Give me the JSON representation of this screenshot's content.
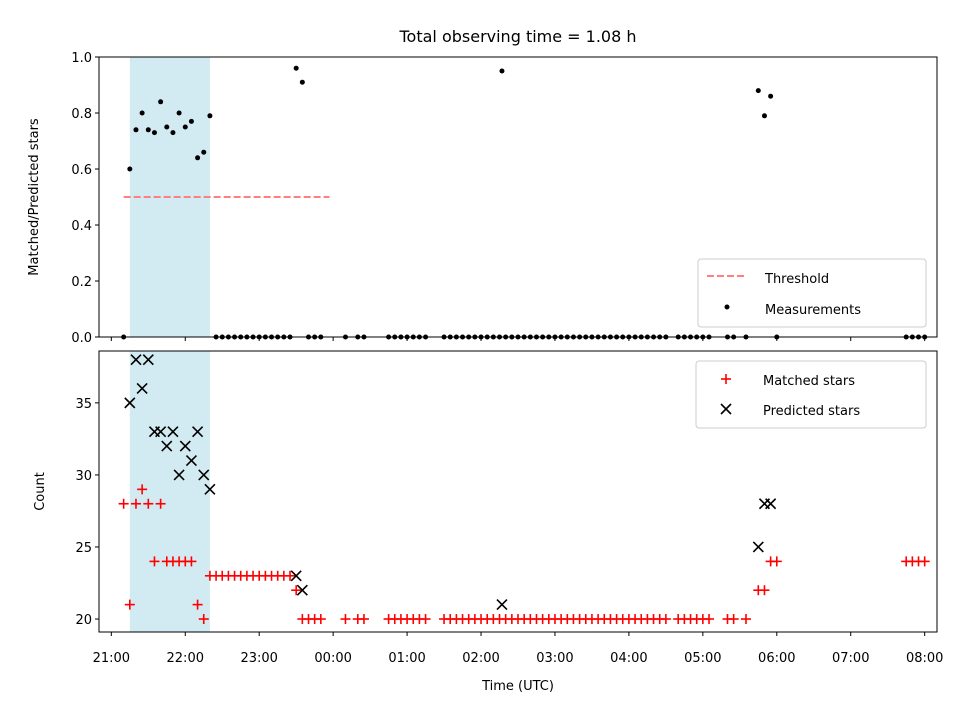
{
  "title": "Total observing time = 1.08 h",
  "colors": {
    "threshold": "#ff7f7f",
    "highlight": "#add8e6",
    "matched": "#ff0000",
    "predicted": "#000000",
    "measurement": "#000000"
  },
  "chart_data": [
    {
      "type": "scatter",
      "panel": "top",
      "ylabel": "Matched/Predicted stars",
      "xlabel": "",
      "ylim": [
        0,
        1.0
      ],
      "xlim": [
        "21:00",
        "08:00"
      ],
      "x_is_time": true,
      "y_ticks": [
        "0.0",
        "0.2",
        "0.4",
        "0.6",
        "0.8",
        "1.0"
      ],
      "highlight_span": [
        "21:15",
        "22:20"
      ],
      "legend_position": "lower right",
      "threshold": {
        "name": "Threshold",
        "style": "dashed",
        "x": [
          "21:10",
          "23:57"
        ],
        "y": 0.5
      },
      "series": [
        {
          "name": "Measurements",
          "marker": "dot",
          "points": [
            [
              "21:10",
              0.0
            ],
            [
              "21:15",
              0.6
            ],
            [
              "21:20",
              0.74
            ],
            [
              "21:25",
              0.8
            ],
            [
              "21:30",
              0.74
            ],
            [
              "21:35",
              0.73
            ],
            [
              "21:40",
              0.84
            ],
            [
              "21:45",
              0.75
            ],
            [
              "21:50",
              0.73
            ],
            [
              "21:55",
              0.8
            ],
            [
              "22:00",
              0.75
            ],
            [
              "22:05",
              0.77
            ],
            [
              "22:10",
              0.64
            ],
            [
              "22:15",
              0.66
            ],
            [
              "22:20",
              0.79
            ],
            [
              "22:25",
              0.0
            ],
            [
              "22:30",
              0.0
            ],
            [
              "22:35",
              0.0
            ],
            [
              "22:40",
              0.0
            ],
            [
              "22:45",
              0.0
            ],
            [
              "22:50",
              0.0
            ],
            [
              "22:55",
              0.0
            ],
            [
              "23:00",
              0.0
            ],
            [
              "23:05",
              0.0
            ],
            [
              "23:10",
              0.0
            ],
            [
              "23:15",
              0.0
            ],
            [
              "23:20",
              0.0
            ],
            [
              "23:25",
              0.0
            ],
            [
              "23:30",
              0.96
            ],
            [
              "23:35",
              0.91
            ],
            [
              "23:40",
              0.0
            ],
            [
              "23:45",
              0.0
            ],
            [
              "23:50",
              0.0
            ],
            [
              "00:10",
              0.0
            ],
            [
              "00:20",
              0.0
            ],
            [
              "00:25",
              0.0
            ],
            [
              "00:45",
              0.0
            ],
            [
              "00:50",
              0.0
            ],
            [
              "00:55",
              0.0
            ],
            [
              "01:00",
              0.0
            ],
            [
              "01:05",
              0.0
            ],
            [
              "01:10",
              0.0
            ],
            [
              "01:15",
              0.0
            ],
            [
              "01:30",
              0.0
            ],
            [
              "01:35",
              0.0
            ],
            [
              "01:40",
              0.0
            ],
            [
              "01:45",
              0.0
            ],
            [
              "01:50",
              0.0
            ],
            [
              "01:55",
              0.0
            ],
            [
              "02:00",
              0.0
            ],
            [
              "02:05",
              0.0
            ],
            [
              "02:10",
              0.0
            ],
            [
              "02:15",
              0.0
            ],
            [
              "02:17",
              0.95
            ],
            [
              "02:20",
              0.0
            ],
            [
              "02:25",
              0.0
            ],
            [
              "02:30",
              0.0
            ],
            [
              "02:35",
              0.0
            ],
            [
              "02:40",
              0.0
            ],
            [
              "02:45",
              0.0
            ],
            [
              "02:50",
              0.0
            ],
            [
              "02:55",
              0.0
            ],
            [
              "03:00",
              0.0
            ],
            [
              "03:05",
              0.0
            ],
            [
              "03:10",
              0.0
            ],
            [
              "03:15",
              0.0
            ],
            [
              "03:20",
              0.0
            ],
            [
              "03:25",
              0.0
            ],
            [
              "03:30",
              0.0
            ],
            [
              "03:35",
              0.0
            ],
            [
              "03:40",
              0.0
            ],
            [
              "03:45",
              0.0
            ],
            [
              "03:50",
              0.0
            ],
            [
              "03:55",
              0.0
            ],
            [
              "04:00",
              0.0
            ],
            [
              "04:05",
              0.0
            ],
            [
              "04:10",
              0.0
            ],
            [
              "04:15",
              0.0
            ],
            [
              "04:20",
              0.0
            ],
            [
              "04:25",
              0.0
            ],
            [
              "04:30",
              0.0
            ],
            [
              "04:40",
              0.0
            ],
            [
              "04:45",
              0.0
            ],
            [
              "04:50",
              0.0
            ],
            [
              "04:55",
              0.0
            ],
            [
              "05:00",
              0.0
            ],
            [
              "05:05",
              0.0
            ],
            [
              "05:20",
              0.0
            ],
            [
              "05:25",
              0.0
            ],
            [
              "05:35",
              0.0
            ],
            [
              "05:45",
              0.88
            ],
            [
              "05:50",
              0.79
            ],
            [
              "05:55",
              0.86
            ],
            [
              "06:00",
              0.0
            ],
            [
              "07:45",
              0.0
            ],
            [
              "07:50",
              0.0
            ],
            [
              "07:55",
              0.0
            ],
            [
              "08:00",
              0.0
            ]
          ]
        }
      ]
    },
    {
      "type": "scatter",
      "panel": "bottom",
      "xlabel": "Time (UTC)",
      "ylabel": "Count",
      "ylim": [
        19.1,
        38.6
      ],
      "xlim": [
        "21:00",
        "08:00"
      ],
      "x_is_time": true,
      "y_ticks": [
        "20",
        "25",
        "30",
        "35"
      ],
      "x_ticks": [
        "21:00",
        "22:00",
        "23:00",
        "00:00",
        "01:00",
        "02:00",
        "03:00",
        "04:00",
        "05:00",
        "06:00",
        "07:00",
        "08:00"
      ],
      "highlight_span": [
        "21:15",
        "22:20"
      ],
      "legend_position": "upper right",
      "series": [
        {
          "name": "Matched stars",
          "marker": "plus",
          "points": [
            [
              "21:10",
              28
            ],
            [
              "21:15",
              21
            ],
            [
              "21:20",
              28
            ],
            [
              "21:25",
              29
            ],
            [
              "21:30",
              28
            ],
            [
              "21:35",
              24
            ],
            [
              "21:40",
              28
            ],
            [
              "21:45",
              24
            ],
            [
              "21:50",
              24
            ],
            [
              "21:55",
              24
            ],
            [
              "22:00",
              24
            ],
            [
              "22:05",
              24
            ],
            [
              "22:10",
              21
            ],
            [
              "22:15",
              20
            ],
            [
              "22:20",
              23
            ],
            [
              "22:25",
              23
            ],
            [
              "22:30",
              23
            ],
            [
              "22:35",
              23
            ],
            [
              "22:40",
              23
            ],
            [
              "22:45",
              23
            ],
            [
              "22:50",
              23
            ],
            [
              "22:55",
              23
            ],
            [
              "23:00",
              23
            ],
            [
              "23:05",
              23
            ],
            [
              "23:10",
              23
            ],
            [
              "23:15",
              23
            ],
            [
              "23:20",
              23
            ],
            [
              "23:25",
              23
            ],
            [
              "23:30",
              22
            ],
            [
              "23:35",
              20
            ],
            [
              "23:40",
              20
            ],
            [
              "23:45",
              20
            ],
            [
              "23:50",
              20
            ],
            [
              "00:10",
              20
            ],
            [
              "00:20",
              20
            ],
            [
              "00:25",
              20
            ],
            [
              "00:45",
              20
            ],
            [
              "00:50",
              20
            ],
            [
              "00:55",
              20
            ],
            [
              "01:00",
              20
            ],
            [
              "01:05",
              20
            ],
            [
              "01:10",
              20
            ],
            [
              "01:15",
              20
            ],
            [
              "01:30",
              20
            ],
            [
              "01:35",
              20
            ],
            [
              "01:40",
              20
            ],
            [
              "01:45",
              20
            ],
            [
              "01:50",
              20
            ],
            [
              "01:55",
              20
            ],
            [
              "02:00",
              20
            ],
            [
              "02:05",
              20
            ],
            [
              "02:10",
              20
            ],
            [
              "02:15",
              20
            ],
            [
              "02:20",
              20
            ],
            [
              "02:25",
              20
            ],
            [
              "02:30",
              20
            ],
            [
              "02:35",
              20
            ],
            [
              "02:40",
              20
            ],
            [
              "02:45",
              20
            ],
            [
              "02:50",
              20
            ],
            [
              "02:55",
              20
            ],
            [
              "03:00",
              20
            ],
            [
              "03:05",
              20
            ],
            [
              "03:10",
              20
            ],
            [
              "03:15",
              20
            ],
            [
              "03:20",
              20
            ],
            [
              "03:25",
              20
            ],
            [
              "03:30",
              20
            ],
            [
              "03:35",
              20
            ],
            [
              "03:40",
              20
            ],
            [
              "03:45",
              20
            ],
            [
              "03:50",
              20
            ],
            [
              "03:55",
              20
            ],
            [
              "04:00",
              20
            ],
            [
              "04:05",
              20
            ],
            [
              "04:10",
              20
            ],
            [
              "04:15",
              20
            ],
            [
              "04:20",
              20
            ],
            [
              "04:25",
              20
            ],
            [
              "04:30",
              20
            ],
            [
              "04:40",
              20
            ],
            [
              "04:45",
              20
            ],
            [
              "04:50",
              20
            ],
            [
              "04:55",
              20
            ],
            [
              "05:00",
              20
            ],
            [
              "05:05",
              20
            ],
            [
              "05:20",
              20
            ],
            [
              "05:25",
              20
            ],
            [
              "05:35",
              20
            ],
            [
              "05:45",
              22
            ],
            [
              "05:50",
              22
            ],
            [
              "05:55",
              24
            ],
            [
              "06:00",
              24
            ],
            [
              "07:45",
              24
            ],
            [
              "07:50",
              24
            ],
            [
              "07:55",
              24
            ],
            [
              "08:00",
              24
            ]
          ]
        },
        {
          "name": "Predicted stars",
          "marker": "x",
          "points": [
            [
              "21:15",
              35
            ],
            [
              "21:20",
              38
            ],
            [
              "21:25",
              36
            ],
            [
              "21:30",
              38
            ],
            [
              "21:35",
              33
            ],
            [
              "21:40",
              33
            ],
            [
              "21:45",
              32
            ],
            [
              "21:50",
              33
            ],
            [
              "21:55",
              30
            ],
            [
              "22:00",
              32
            ],
            [
              "22:05",
              31
            ],
            [
              "22:10",
              33
            ],
            [
              "22:15",
              30
            ],
            [
              "22:20",
              29
            ],
            [
              "23:30",
              23
            ],
            [
              "23:35",
              22
            ],
            [
              "02:17",
              21
            ],
            [
              "05:45",
              25
            ],
            [
              "05:50",
              28
            ],
            [
              "05:55",
              28
            ]
          ]
        }
      ]
    }
  ]
}
